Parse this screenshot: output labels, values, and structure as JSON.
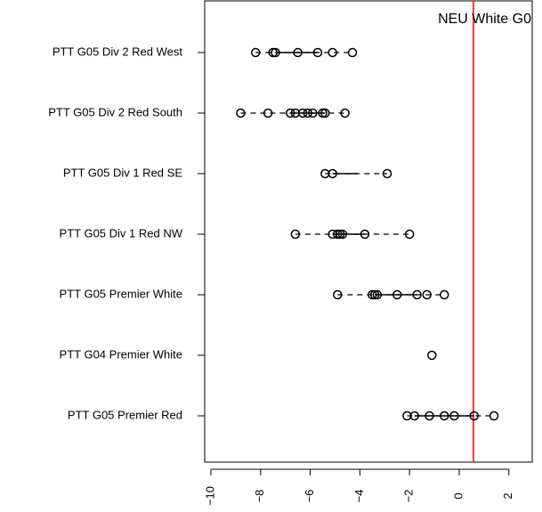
{
  "chart_data": {
    "type": "strip",
    "categories": [
      "PTT G05 Div 2 Red West",
      "PTT G05 Div 2 Red South",
      "PTT G05 Div 1 Red SE",
      "PTT G05 Div 1 Red NW",
      "PTT G05 Premier White",
      "PTT G04 Premier White",
      "PTT G05 Premier Red"
    ],
    "values": [
      [
        -8.2,
        -7.5,
        -7.4,
        -6.5,
        -5.7,
        -5.1,
        -4.3
      ],
      [
        -8.8,
        -7.7,
        -6.8,
        -6.6,
        -6.3,
        -6.1,
        -5.9,
        -5.5,
        -5.4,
        -4.6
      ],
      [
        -5.4,
        -5.1,
        -2.9
      ],
      [
        -6.6,
        -5.1,
        -4.9,
        -4.8,
        -4.7,
        -3.8,
        -2.0
      ],
      [
        -4.9,
        -3.5,
        -3.4,
        -3.3,
        -2.5,
        -1.7,
        -1.3,
        -0.6
      ],
      [
        -1.1
      ],
      [
        -2.1,
        -1.8,
        -1.2,
        -0.6,
        -0.2,
        0.6,
        1.4
      ]
    ],
    "quartiles": [
      [
        -7.4,
        -5.7
      ],
      [
        -6.8,
        -5.4
      ],
      [
        -5.1,
        -4.1
      ],
      [
        -5.1,
        -3.8
      ],
      [
        -3.4,
        -1.7
      ],
      [
        -1.1,
        -1.1
      ],
      [
        -1.8,
        0.6
      ]
    ],
    "color": "#000000",
    "xlim": [
      -10.25,
      2.94
    ],
    "xticks": [
      {
        "value": -10,
        "label": "−10"
      },
      {
        "value": -8,
        "label": "−8"
      },
      {
        "value": -6,
        "label": "−6"
      },
      {
        "value": -4,
        "label": "−4"
      },
      {
        "value": -2,
        "label": "−2"
      },
      0,
      2
    ],
    "reference_line": {
      "value": 0.57,
      "label": "NEU White G0",
      "color": "#ff0000"
    }
  }
}
